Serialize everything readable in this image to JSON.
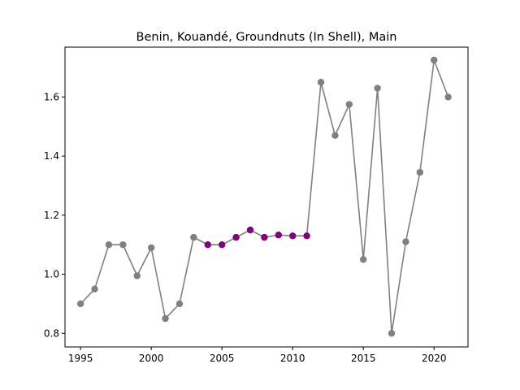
{
  "chart_data": {
    "type": "line",
    "title": "Benin, Kouandé, Groundnuts (In Shell), Main",
    "xlabel": "",
    "ylabel": "",
    "xlim": [
      1993.9,
      2022.4
    ],
    "ylim": [
      0.754,
      1.769
    ],
    "x_ticks": [
      1995,
      2000,
      2005,
      2010,
      2015,
      2020
    ],
    "y_ticks": [
      0.8,
      1.0,
      1.2,
      1.4,
      1.6
    ],
    "grid": false,
    "line_color": "#808080",
    "colors": {
      "default": "#808080",
      "highlight": "#800080"
    },
    "points": [
      {
        "x": 1995,
        "y": 0.9,
        "highlight": false
      },
      {
        "x": 1996,
        "y": 0.95,
        "highlight": false
      },
      {
        "x": 1997,
        "y": 1.1,
        "highlight": false
      },
      {
        "x": 1998,
        "y": 1.1,
        "highlight": false
      },
      {
        "x": 1999,
        "y": 0.995,
        "highlight": false
      },
      {
        "x": 2000,
        "y": 1.09,
        "highlight": false
      },
      {
        "x": 2001,
        "y": 0.85,
        "highlight": false
      },
      {
        "x": 2002,
        "y": 0.9,
        "highlight": false
      },
      {
        "x": 2003,
        "y": 1.125,
        "highlight": false
      },
      {
        "x": 2004,
        "y": 1.1,
        "highlight": true
      },
      {
        "x": 2005,
        "y": 1.1,
        "highlight": true
      },
      {
        "x": 2006,
        "y": 1.125,
        "highlight": true
      },
      {
        "x": 2007,
        "y": 1.15,
        "highlight": true
      },
      {
        "x": 2008,
        "y": 1.125,
        "highlight": true
      },
      {
        "x": 2009,
        "y": 1.133,
        "highlight": true
      },
      {
        "x": 2010,
        "y": 1.13,
        "highlight": true
      },
      {
        "x": 2011,
        "y": 1.13,
        "highlight": true
      },
      {
        "x": 2012,
        "y": 1.65,
        "highlight": false
      },
      {
        "x": 2013,
        "y": 1.47,
        "highlight": false
      },
      {
        "x": 2014,
        "y": 1.575,
        "highlight": false
      },
      {
        "x": 2015,
        "y": 1.05,
        "highlight": false
      },
      {
        "x": 2016,
        "y": 1.63,
        "highlight": false
      },
      {
        "x": 2017,
        "y": 0.8,
        "highlight": false
      },
      {
        "x": 2018,
        "y": 1.11,
        "highlight": false
      },
      {
        "x": 2019,
        "y": 1.345,
        "highlight": false
      },
      {
        "x": 2020,
        "y": 1.725,
        "highlight": false
      },
      {
        "x": 2021,
        "y": 1.6,
        "highlight": false
      }
    ]
  }
}
